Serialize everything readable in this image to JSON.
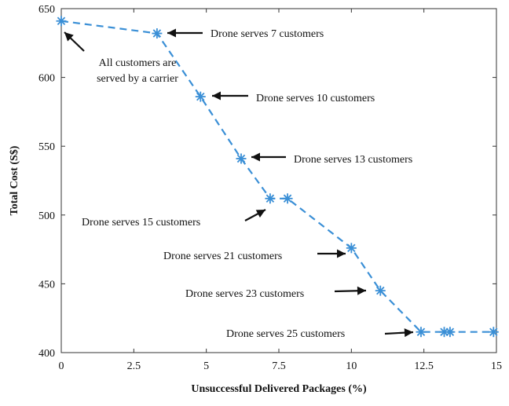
{
  "chart_data": {
    "type": "line",
    "title": "",
    "xlabel": "Unsuccessful Delivered Packages (%)",
    "ylabel": "Total Cost (S$)",
    "xlim": [
      0,
      15
    ],
    "ylim": [
      400,
      650
    ],
    "xticks": [
      0,
      2.5,
      5,
      7.5,
      10,
      12.5,
      15
    ],
    "xtick_labels": [
      "0",
      "2.5",
      "5",
      "7.5",
      "10",
      "12.5",
      "15"
    ],
    "yticks": [
      400,
      450,
      500,
      550,
      600,
      650
    ],
    "ytick_labels": [
      "400",
      "450",
      "500",
      "550",
      "600",
      "650"
    ],
    "grid": false,
    "series": [
      {
        "x": [
          0,
          3.3,
          4.8,
          6.2,
          7.2,
          7.8,
          10.0,
          11.0,
          12.4,
          13.2,
          13.4,
          14.9
        ],
        "y": [
          641,
          632,
          586,
          541,
          512,
          512,
          476,
          445,
          415,
          415,
          415,
          415
        ],
        "color": "#3a8fd6",
        "line_style": "dashed",
        "marker": "asterisk"
      }
    ],
    "annotations": [
      {
        "text": "Drone serves 7 customers",
        "point": [
          3.3,
          632
        ]
      },
      {
        "text": "All customers are",
        "text2": "served by a carrier",
        "point": [
          0,
          641
        ]
      },
      {
        "text": "Drone serves 10 customers",
        "point": [
          4.8,
          586
        ]
      },
      {
        "text": "Drone serves 13 customers",
        "point": [
          6.2,
          541
        ]
      },
      {
        "text": "Drone serves 15 customers",
        "point": [
          7.2,
          512
        ]
      },
      {
        "text": "Drone serves 21 customers",
        "point": [
          10.0,
          476
        ]
      },
      {
        "text": "Drone serves 23 customers",
        "point": [
          11.0,
          445
        ]
      },
      {
        "text": "Drone serves 25 customers",
        "point": [
          12.4,
          415
        ]
      }
    ]
  }
}
